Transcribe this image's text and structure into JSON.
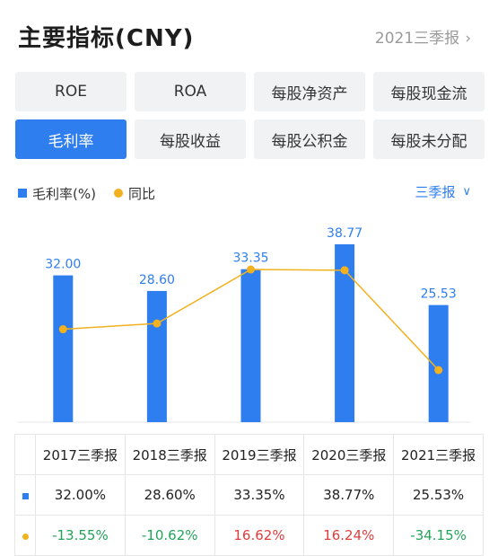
{
  "header": {
    "title": "主要指标(CNY)",
    "period_link": "2021三季报"
  },
  "tabs": [
    {
      "label": "ROE",
      "active": false
    },
    {
      "label": "ROA",
      "active": false
    },
    {
      "label": "每股净资产",
      "active": false
    },
    {
      "label": "每股现金流",
      "active": false
    },
    {
      "label": "毛利率",
      "active": true
    },
    {
      "label": "每股收益",
      "active": false
    },
    {
      "label": "每股公积金",
      "active": false
    },
    {
      "label": "每股未分配",
      "active": false
    }
  ],
  "legend": {
    "bar_label": "毛利率(%)",
    "line_label": "同比"
  },
  "period_select": "三季报",
  "colors": {
    "accent": "#2f7ef0",
    "line": "#f2b11e",
    "positive": "#e03c3c",
    "negative": "#23a35a"
  },
  "chart_data": {
    "type": "bar",
    "categories": [
      "2017三季报",
      "2018三季报",
      "2019三季报",
      "2020三季报",
      "2021三季报"
    ],
    "series": [
      {
        "name": "毛利率(%)",
        "type": "bar",
        "values": [
          32.0,
          28.6,
          33.35,
          38.77,
          25.53
        ],
        "labels": [
          "32.00",
          "28.60",
          "33.35",
          "38.77",
          "25.53"
        ]
      },
      {
        "name": "同比",
        "type": "line",
        "values": [
          -13.55,
          -10.62,
          16.62,
          16.24,
          -34.15
        ]
      }
    ]
  },
  "table": {
    "headers": [
      "2017三季报",
      "2018三季报",
      "2019三季报",
      "2020三季报",
      "2021三季报"
    ],
    "rows": [
      {
        "marker": "bar",
        "cells": [
          "32.00%",
          "28.60%",
          "33.35%",
          "38.77%",
          "25.53%"
        ]
      },
      {
        "marker": "line",
        "cells": [
          "-13.55%",
          "-10.62%",
          "16.62%",
          "16.24%",
          "-34.15%"
        ]
      }
    ]
  }
}
